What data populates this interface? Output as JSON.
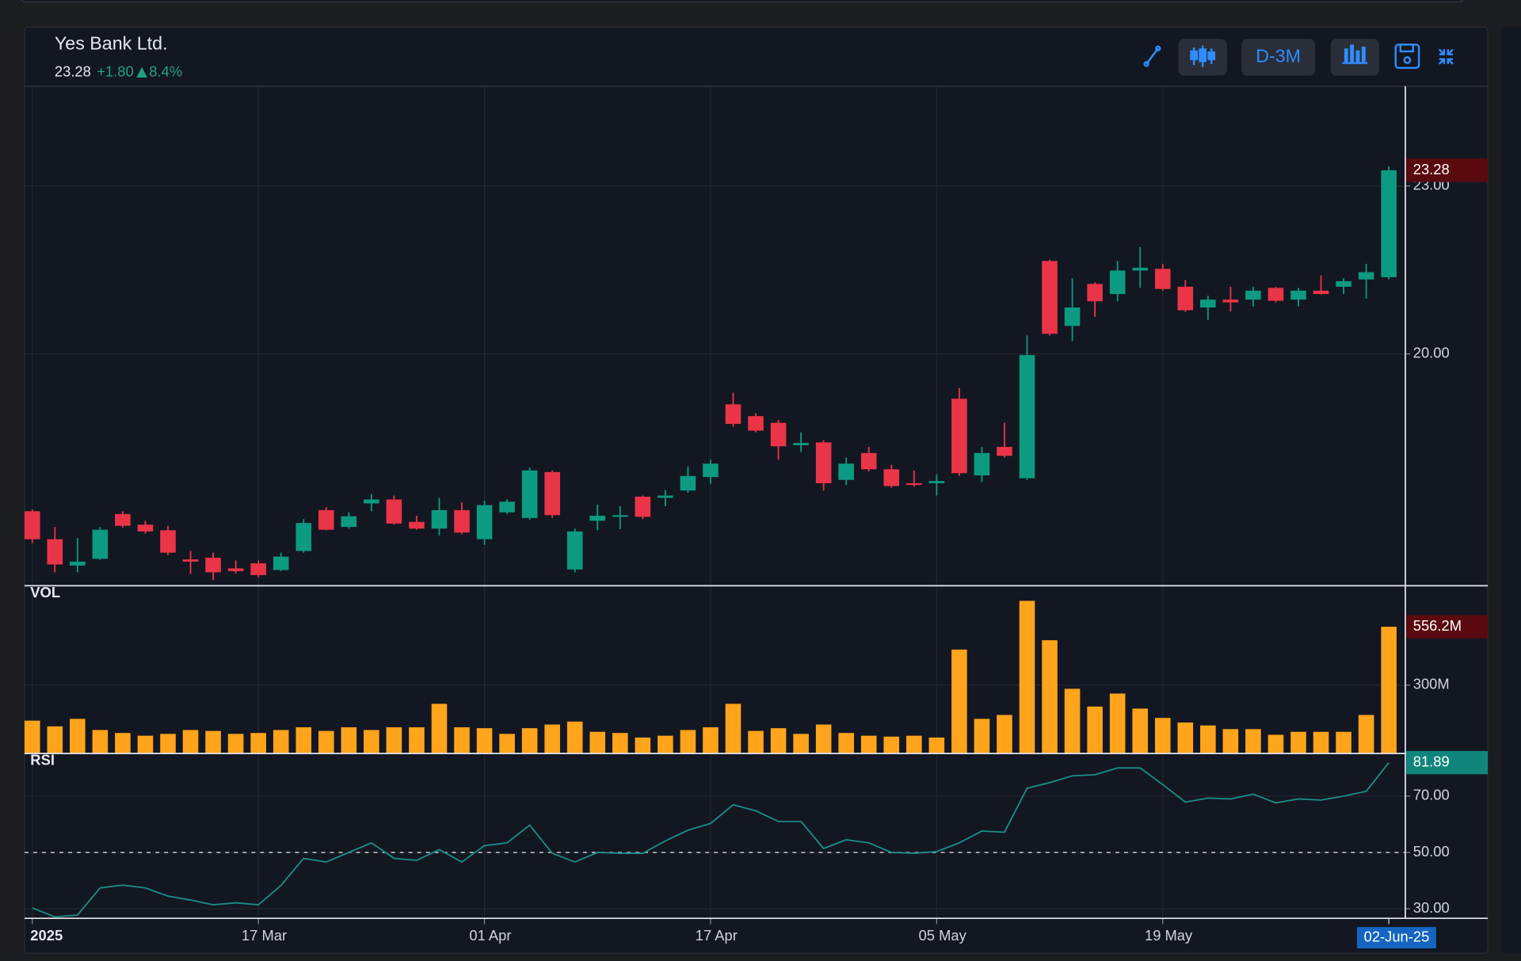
{
  "header": {
    "title": "Yes Bank Ltd.",
    "change": "+1.80",
    "change_pct": "8.4%",
    "interval": "D-3M"
  },
  "chart_data": [
    {
      "type": "candlestick",
      "up_color": "#0c9a80",
      "down_color": "#ea3548",
      "open": [
        17.19,
        16.69,
        16.22,
        16.34,
        17.14,
        16.95,
        16.85,
        16.33,
        16.36,
        16.17,
        16.26,
        16.14,
        16.48,
        17.21,
        16.91,
        17.33,
        17.4,
        17.0,
        16.88,
        17.21,
        16.69,
        17.17,
        17.07,
        17.89,
        16.15,
        17.02,
        17.09,
        17.45,
        17.43,
        17.56,
        17.8,
        19.1,
        18.89,
        18.77,
        18.37,
        18.42,
        17.75,
        18.23,
        17.94,
        17.69,
        17.69,
        19.2,
        17.83,
        18.34,
        17.78,
        21.66,
        20.5,
        21.25,
        21.07,
        21.49,
        21.52,
        21.2,
        20.83,
        20.97,
        20.97,
        21.18,
        20.97,
        21.13,
        21.2,
        21.33,
        21.37
      ],
      "high": [
        17.22,
        16.91,
        16.71,
        16.91,
        17.19,
        17.02,
        16.93,
        16.48,
        16.45,
        16.31,
        16.31,
        16.45,
        17.05,
        17.26,
        17.17,
        17.5,
        17.47,
        17.11,
        17.43,
        17.35,
        17.38,
        17.4,
        17.97,
        17.92,
        16.88,
        17.31,
        17.28,
        17.47,
        17.57,
        17.99,
        18.11,
        19.31,
        18.94,
        18.82,
        18.6,
        18.46,
        18.15,
        18.34,
        18.02,
        17.92,
        17.85,
        19.39,
        18.34,
        18.77,
        20.33,
        21.68,
        21.35,
        21.28,
        21.66,
        21.91,
        21.61,
        21.32,
        21.04,
        21.2,
        21.2,
        21.2,
        21.18,
        21.4,
        21.35,
        21.61,
        23.35
      ],
      "low": [
        16.62,
        16.1,
        16.1,
        16.32,
        16.9,
        16.79,
        16.41,
        16.07,
        15.96,
        16.08,
        16.01,
        16.12,
        16.45,
        16.85,
        16.88,
        17.19,
        16.95,
        16.86,
        16.76,
        16.78,
        16.59,
        17.14,
        17.04,
        17.07,
        16.1,
        16.85,
        16.87,
        17.05,
        17.28,
        17.52,
        17.68,
        18.7,
        18.6,
        18.11,
        18.25,
        17.56,
        17.66,
        17.9,
        17.61,
        17.63,
        17.47,
        17.82,
        17.71,
        18.15,
        17.75,
        20.33,
        20.23,
        20.66,
        20.94,
        21.18,
        21.13,
        20.75,
        20.61,
        20.76,
        20.85,
        20.92,
        20.85,
        21.06,
        21.07,
        20.99,
        21.33
      ],
      "close": [
        16.69,
        16.24,
        16.29,
        16.86,
        16.93,
        16.83,
        16.45,
        16.29,
        16.1,
        16.12,
        16.05,
        16.38,
        16.98,
        16.86,
        17.1,
        17.4,
        16.97,
        16.88,
        17.21,
        16.81,
        17.3,
        17.36,
        17.92,
        17.12,
        16.83,
        17.11,
        17.12,
        17.09,
        17.47,
        17.82,
        18.04,
        18.75,
        18.63,
        18.35,
        18.41,
        17.69,
        18.04,
        17.94,
        17.64,
        17.66,
        17.73,
        17.87,
        18.23,
        18.18,
        19.98,
        20.36,
        20.83,
        20.94,
        21.49,
        21.54,
        21.16,
        20.78,
        20.97,
        20.92,
        21.13,
        20.95,
        21.13,
        21.07,
        21.3,
        21.46,
        23.28
      ],
      "ylim": [
        15.86,
        24.78
      ],
      "yticks": [
        {
          "value": 20,
          "label": "20.00"
        },
        {
          "value": 23,
          "label": "23.00"
        }
      ],
      "grid": true
    },
    {
      "type": "bar",
      "name": "VOL",
      "color": "#ffa41b",
      "values": [
        144,
        119,
        152,
        103,
        90,
        78,
        86,
        103,
        99,
        86,
        90,
        103,
        115,
        99,
        115,
        103,
        115,
        115,
        218,
        115,
        111,
        86,
        111,
        127,
        140,
        95,
        90,
        70,
        78,
        103,
        115,
        218,
        99,
        111,
        86,
        127,
        90,
        78,
        74,
        78,
        70,
        456,
        152,
        169,
        670,
        497,
        284,
        206,
        263,
        197,
        156,
        136,
        123,
        107,
        107,
        82,
        95,
        95,
        95,
        169,
        556.2
      ],
      "last_label": "556.2M",
      "ylim": [
        0,
        732
      ],
      "yticks": [
        {
          "value": 300,
          "label": "300M"
        }
      ],
      "grid": true
    },
    {
      "type": "line",
      "name": "RSI",
      "color": "#1c8c86",
      "last_color": "#10857c",
      "values": [
        30.3,
        27.1,
        27.8,
        37.4,
        38.4,
        37.4,
        34.5,
        33.1,
        31.4,
        32.1,
        31.4,
        38.3,
        47.9,
        46.6,
        50,
        53.4,
        47.9,
        47.2,
        51,
        46.6,
        52.4,
        53.4,
        59.7,
        49.7,
        46.6,
        50,
        49.7,
        49.7,
        54.1,
        57.9,
        60.3,
        66.9,
        64.8,
        61,
        61,
        51.4,
        54.5,
        53.4,
        50,
        49.7,
        50.3,
        53.4,
        57.6,
        57.2,
        72.8,
        74.8,
        77.2,
        77.6,
        80,
        80,
        74.1,
        67.9,
        69.3,
        69,
        70.7,
        67.6,
        69,
        68.6,
        70,
        71.7,
        81.89
      ],
      "ylim": [
        26.6,
        84.8
      ],
      "yticks": [
        {
          "value": 30,
          "label": "30.00"
        },
        {
          "value": 50,
          "label": "50.00"
        },
        {
          "value": 70,
          "label": "70.00"
        }
      ],
      "reference_line": 50,
      "grid": true
    }
  ],
  "x_axis": {
    "ticks": [
      {
        "value": 0,
        "label": "2025"
      },
      {
        "value": 10,
        "label": "17 Mar"
      },
      {
        "value": 20,
        "label": "01 Apr"
      },
      {
        "value": 30,
        "label": "17 Apr"
      },
      {
        "value": 40,
        "label": "05 May"
      },
      {
        "value": 50,
        "label": "19 May"
      }
    ],
    "cursor": {
      "value": 60,
      "label": "02-Jun-25"
    }
  }
}
